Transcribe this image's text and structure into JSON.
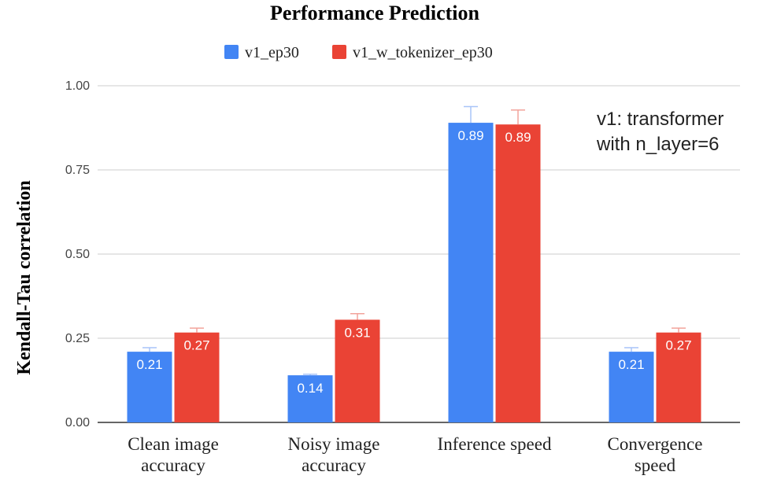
{
  "chart_data": {
    "type": "bar",
    "title": "Performance Prediction",
    "ylabel": "Kendall-Tau correlation",
    "ylim": [
      0,
      1
    ],
    "yticks": [
      "0.00",
      "0.25",
      "0.50",
      "0.75",
      "1.00"
    ],
    "grid": true,
    "legend_position": "top",
    "categories": [
      [
        "Clean image",
        "accuracy"
      ],
      [
        "Noisy image",
        "accuracy"
      ],
      [
        "Inference speed"
      ],
      [
        "Convergence",
        "speed"
      ]
    ],
    "series": [
      {
        "name": "v1_ep30",
        "color": "#4285f4",
        "error_color": "#a8c4f8",
        "values": [
          0.21,
          0.14,
          0.89,
          0.21
        ],
        "labels": [
          "0.21",
          "0.14",
          "0.89",
          "0.21"
        ],
        "error_high": [
          0.222,
          0.143,
          0.938,
          0.222
        ]
      },
      {
        "name": "v1_w_tokenizer_ep30",
        "color": "#ea4335",
        "error_color": "#f2a39b",
        "values": [
          0.267,
          0.305,
          0.885,
          0.267
        ],
        "labels": [
          "0.27",
          "0.31",
          "0.89",
          "0.27"
        ],
        "error_high": [
          0.28,
          0.323,
          0.928,
          0.28
        ]
      }
    ],
    "annotation": [
      "v1: transformer",
      "with n_layer=6"
    ]
  }
}
